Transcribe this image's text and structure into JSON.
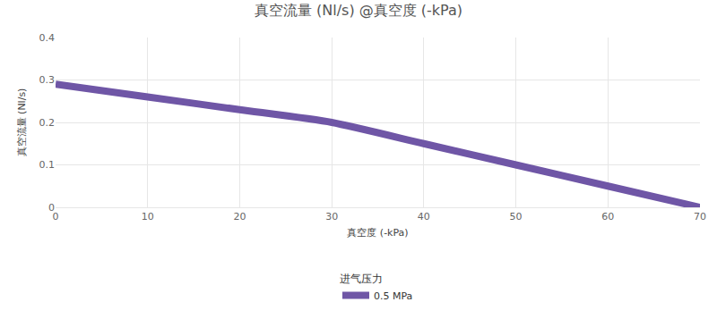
{
  "chart_data": {
    "type": "line",
    "title": "真空流量 (Nl/s) @真空度 (-kPa)",
    "x_label": "真空度 (-kPa)",
    "y_label": "真空流量 (Nl/s)",
    "legend_title": "进气压力",
    "x": [
      0,
      10,
      20,
      30,
      40,
      50,
      60,
      70
    ],
    "series": [
      {
        "name": "0.5 MPa",
        "color": "#6f56a6",
        "values": [
          0.29,
          0.26,
          0.23,
          0.2,
          0.15,
          0.1,
          0.05,
          0.0
        ]
      }
    ],
    "xlim": [
      0,
      70
    ],
    "xticks": [
      0,
      10,
      20,
      30,
      40,
      50,
      60,
      70
    ],
    "ylim": [
      0,
      0.4
    ],
    "yticks": [
      0,
      0.1,
      0.2,
      0.3,
      0.4
    ],
    "grid": true,
    "legend": "bottom",
    "line_style": "solid"
  }
}
